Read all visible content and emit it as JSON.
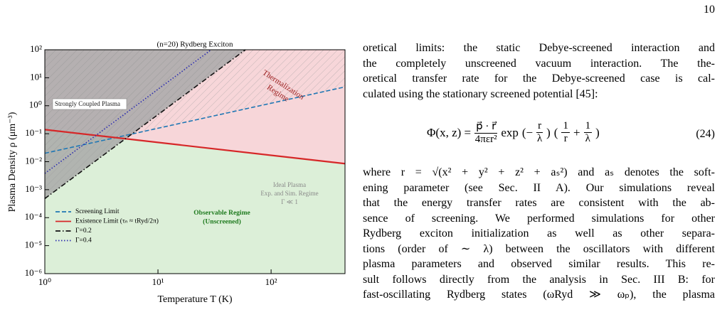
{
  "page_number": "10",
  "chart_data": {
    "type": "line",
    "title": "(n=20) Rydberg Exciton",
    "xlabel": "Temperature T (K)",
    "ylabel": "Plasma Density ρ (μm⁻³)",
    "xscale": "log",
    "yscale": "log",
    "xlim": [
      1,
      450
    ],
    "ylim": [
      1e-06,
      100
    ],
    "xticks": [
      {
        "value": 1,
        "label": "10⁰"
      },
      {
        "value": 10,
        "label": "10¹"
      },
      {
        "value": 100,
        "label": "10²"
      }
    ],
    "yticks": [
      {
        "value": 1e-06,
        "label": "10⁻⁶"
      },
      {
        "value": 1e-05,
        "label": "10⁻⁵"
      },
      {
        "value": 0.0001,
        "label": "10⁻⁴"
      },
      {
        "value": 0.001,
        "label": "10⁻³"
      },
      {
        "value": 0.01,
        "label": "10⁻²"
      },
      {
        "value": 0.1,
        "label": "10⁻¹"
      },
      {
        "value": 1,
        "label": "10⁰"
      },
      {
        "value": 10,
        "label": "10¹"
      },
      {
        "value": 100,
        "label": "10²"
      }
    ],
    "legend": "lower left",
    "series": [
      {
        "name": "Screening Limit",
        "color": "#1f77b4",
        "style": "dashed",
        "x": [
          1,
          450
        ],
        "values": [
          0.02,
          4.7
        ]
      },
      {
        "name": "Existence Limit (τₙ ≈ tRyd/2π)",
        "color": "#d62728",
        "style": "solid",
        "x": [
          1,
          450
        ],
        "values": [
          0.14,
          0.0085
        ]
      },
      {
        "name": "Γ=0.2",
        "color": "#111111",
        "style": "dashdot",
        "x": [
          1,
          59.3
        ],
        "values": [
          0.00048,
          100
        ]
      },
      {
        "name": "Γ=0.4",
        "color": "#2b2bb0",
        "style": "dotted",
        "x": [
          1,
          29.5
        ],
        "values": [
          0.0038,
          100
        ]
      }
    ],
    "annotations": [
      {
        "lines": [
          "Strongly Coupled Plasma"
        ],
        "color": "#222222"
      },
      {
        "lines": [
          "Thermalization",
          "Regime"
        ],
        "color": "#9b1c1c"
      },
      {
        "lines": [
          "Ideal Plasma",
          "Exp. and Sim. Regime",
          "Γ ≪ 1"
        ],
        "color": "#8a8a8a"
      },
      {
        "lines": [
          "Observable Regime",
          "(Unscreened)"
        ],
        "color": "#1e7a1e"
      }
    ]
  },
  "body": {
    "para1": [
      "oretical limits: the static Debye-screened interaction and",
      "the completely unscreened vacuum interaction. The the-",
      "oretical transfer rate for the Debye-screened case is cal-",
      "culated using the stationary screened potential [45]:"
    ],
    "equation": [
      {
        "text": "Φ(x, z) ="
      },
      {
        "num": "p⃗ · r⃗",
        "den": "4πεr²"
      },
      {
        "text": "exp"
      },
      {
        "text": "(−"
      },
      {
        "num": "r",
        "den": "λ"
      },
      {
        "text": ")"
      },
      {
        "text": "("
      },
      {
        "num": "1",
        "den": "r"
      },
      {
        "text": "+"
      },
      {
        "num": "1",
        "den": "λ"
      },
      {
        "text": ")"
      }
    ],
    "equation_number": "(24)",
    "para2": [
      "where r = √(x² + y² + z² + aₛ²) and aₛ denotes the soft-",
      "ening parameter (see Sec. II A). Our simulations reveal",
      "that the energy transfer rates are consistent with the ab-",
      "sence of screening. We performed simulations for other",
      "Rydberg exciton initialization as well as other separa-",
      "tions (order of ∼ λ) between the oscillators with different",
      "plasma parameters and observed similar results. This re-",
      "sult follows directly from the analysis in Sec. III B: for",
      "fast-oscillating Rydberg states (ωRyd ≫ ωₚ), the plasma"
    ]
  }
}
